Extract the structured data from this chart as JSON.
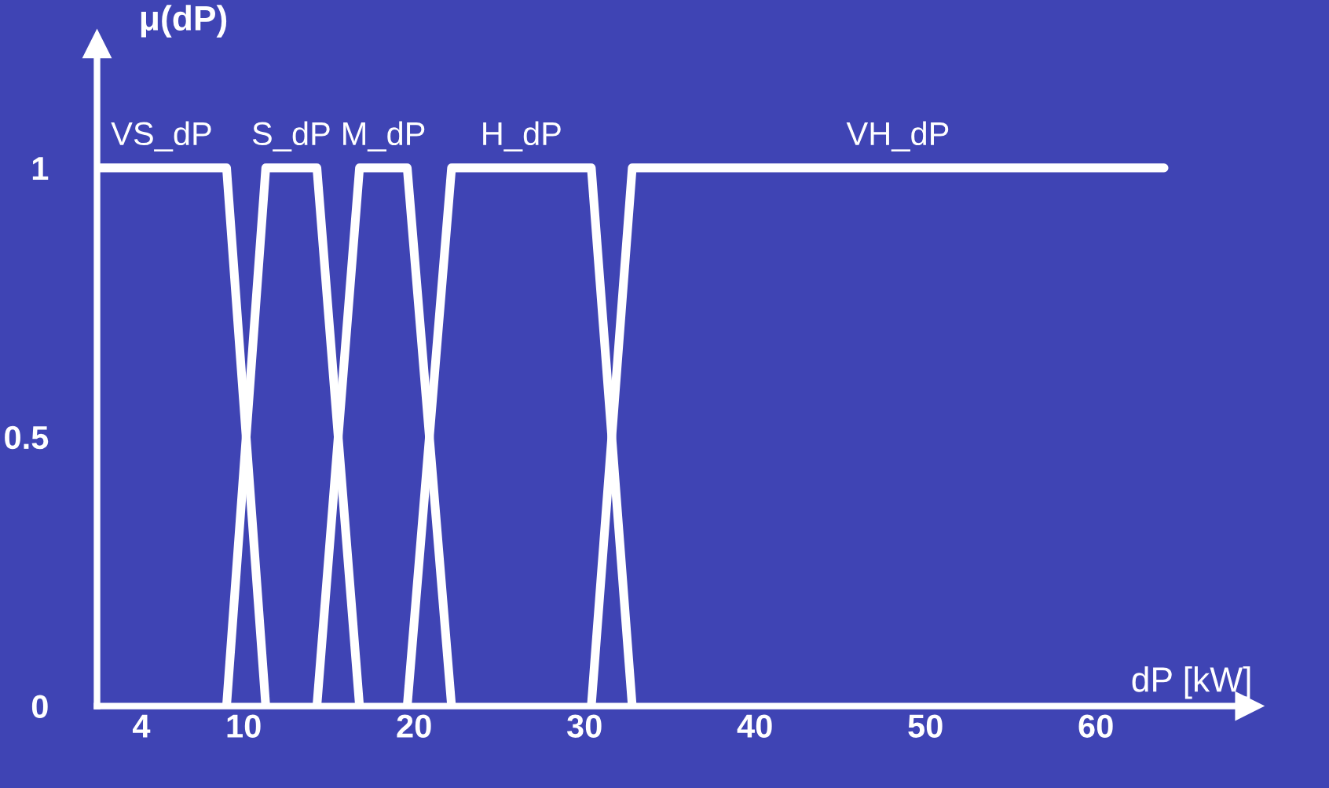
{
  "chart_data": {
    "type": "line",
    "ylabel": "μ(dP)",
    "xlabel": "dP [kW]",
    "xlim": [
      1.4,
      69
    ],
    "ylim": [
      0,
      1.23
    ],
    "xticks": [
      4,
      10,
      20,
      30,
      40,
      50,
      60
    ],
    "yticks": [
      0,
      0.5,
      1
    ],
    "grid": false,
    "marker": "none",
    "line_style": "solid",
    "series": [
      {
        "name": "VS_dP",
        "color": "#ffffff",
        "x": [
          1.4,
          9,
          11.3
        ],
        "values": [
          1,
          1,
          0
        ]
      },
      {
        "name": "S_dP",
        "color": "#ffffff",
        "x": [
          9,
          11.3,
          14.3,
          16.8
        ],
        "values": [
          0,
          1,
          1,
          0
        ]
      },
      {
        "name": "M_dP",
        "color": "#ffffff",
        "x": [
          14.3,
          16.8,
          19.6,
          22.2
        ],
        "values": [
          0,
          1,
          1,
          0
        ]
      },
      {
        "name": "H_dP",
        "color": "#ffffff",
        "x": [
          19.6,
          22.2,
          30.4,
          32.8
        ],
        "values": [
          0,
          1,
          1,
          0
        ]
      },
      {
        "name": "VH_dP",
        "color": "#ffffff",
        "x": [
          30.4,
          32.8,
          64
        ],
        "values": [
          0,
          1,
          1
        ]
      }
    ]
  }
}
